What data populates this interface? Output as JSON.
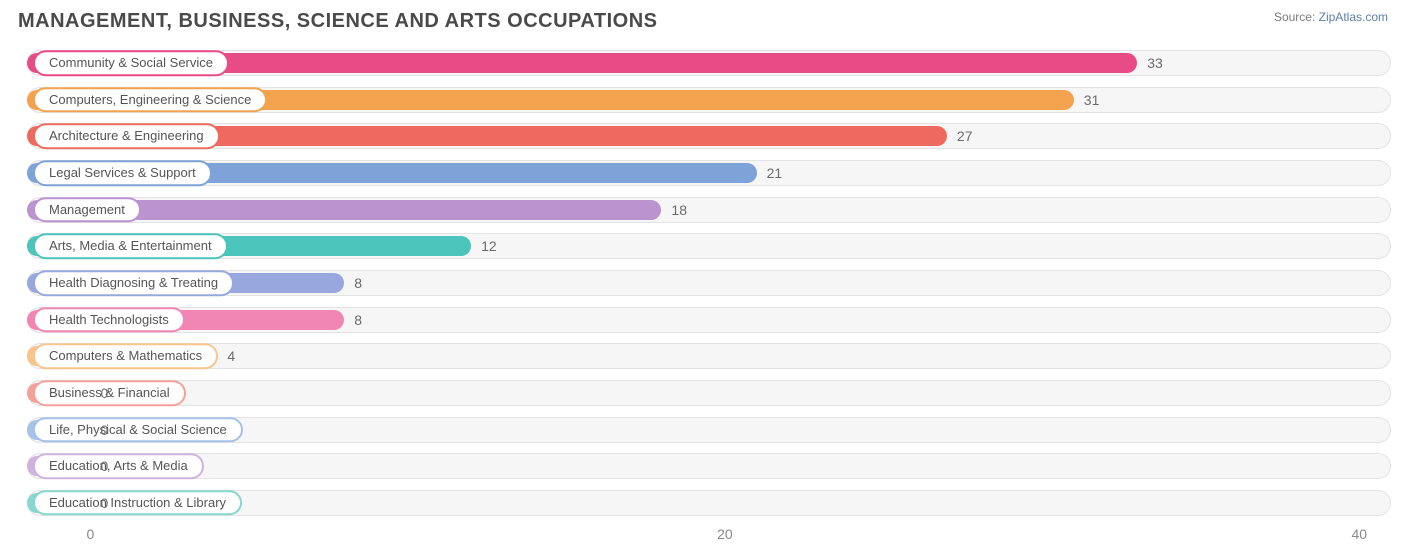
{
  "title": "MANAGEMENT, BUSINESS, SCIENCE AND ARTS OCCUPATIONS",
  "source_prefix": "Source: ",
  "source_name": "ZipAtlas.com",
  "chart": {
    "type": "bar-horizontal",
    "x_min": -2,
    "x_max": 41,
    "x_ticks": [
      0,
      20,
      40
    ],
    "background_color": "#ffffff",
    "track_color": "#f6f6f6",
    "track_border": "#e3e3e3",
    "label_fontsize": 13,
    "value_fontsize": 14,
    "value_color": "#6b6b6b",
    "bars": [
      {
        "label": "Community & Social Service",
        "value": 33,
        "color": "#e94b86"
      },
      {
        "label": "Computers, Engineering & Science",
        "value": 31,
        "color": "#f3a34e"
      },
      {
        "label": "Architecture & Engineering",
        "value": 27,
        "color": "#ee6a5f"
      },
      {
        "label": "Legal Services & Support",
        "value": 21,
        "color": "#7ea3d8"
      },
      {
        "label": "Management",
        "value": 18,
        "color": "#bb94cf"
      },
      {
        "label": "Arts, Media & Entertainment",
        "value": 12,
        "color": "#4bc4bb"
      },
      {
        "label": "Health Diagnosing & Treating",
        "value": 8,
        "color": "#98a8de"
      },
      {
        "label": "Health Technologists",
        "value": 8,
        "color": "#f186b5"
      },
      {
        "label": "Computers & Mathematics",
        "value": 4,
        "color": "#f8c58c"
      },
      {
        "label": "Business & Financial",
        "value": 0,
        "color": "#f4a19a"
      },
      {
        "label": "Life, Physical & Social Science",
        "value": 0,
        "color": "#a6c2e6"
      },
      {
        "label": "Education, Arts & Media",
        "value": 0,
        "color": "#cfb3df"
      },
      {
        "label": "Education Instruction & Library",
        "value": 0,
        "color": "#87d7cf"
      }
    ]
  }
}
